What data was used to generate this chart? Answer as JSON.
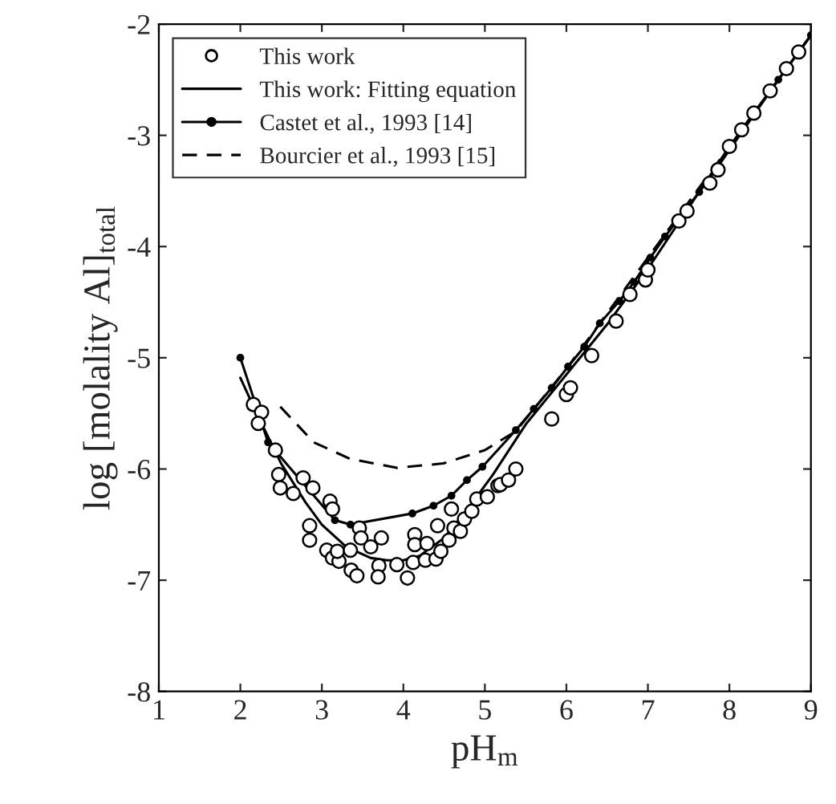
{
  "chart_data": {
    "type": "line",
    "xlabel": "pH$_{m}$",
    "ylabel": "log [molality Al]$_{total}$",
    "xlim": [
      1,
      9
    ],
    "ylim": [
      -8,
      -2
    ],
    "xticks": [
      1,
      2,
      3,
      4,
      5,
      6,
      7,
      8,
      9
    ],
    "yticks": [
      -8,
      -7,
      -6,
      -5,
      -4,
      -3,
      -2
    ],
    "grid": false,
    "legend": "top left",
    "series": [
      {
        "name": "This work",
        "type": "scatter",
        "marker": "circle",
        "color": "#000000",
        "x": [
          2.16,
          2.26,
          2.22,
          2.43,
          2.47,
          2.49,
          2.65,
          2.77,
          2.89,
          3.1,
          3.13,
          2.85,
          2.85,
          3.06,
          3.13,
          3.21,
          3.19,
          3.35,
          3.36,
          3.43,
          3.46,
          3.48,
          3.6,
          3.73,
          3.7,
          3.69,
          3.92,
          4.05,
          4.12,
          4.14,
          4.14,
          4.27,
          4.29,
          4.4,
          4.42,
          4.46,
          4.56,
          4.59,
          4.62,
          4.7,
          4.75,
          4.84,
          4.9,
          5.03,
          5.16,
          5.19,
          5.29,
          5.38,
          5.82,
          6.0,
          6.05,
          6.31,
          6.61,
          6.78,
          6.97,
          7.0,
          7.38,
          7.48,
          7.76,
          7.86,
          8.0,
          8.15,
          8.3,
          8.5,
          8.7,
          8.85
        ],
        "values": [
          -5.42,
          -5.49,
          -5.59,
          -5.83,
          -6.05,
          -6.17,
          -6.22,
          -6.08,
          -6.17,
          -6.29,
          -6.36,
          -6.51,
          -6.64,
          -6.73,
          -6.8,
          -6.83,
          -6.74,
          -6.73,
          -6.91,
          -6.96,
          -6.53,
          -6.62,
          -6.7,
          -6.62,
          -6.87,
          -6.97,
          -6.86,
          -6.98,
          -6.84,
          -6.59,
          -6.68,
          -6.82,
          -6.67,
          -6.81,
          -6.51,
          -6.74,
          -6.64,
          -6.36,
          -6.53,
          -6.56,
          -6.45,
          -6.38,
          -6.27,
          -6.25,
          -6.15,
          -6.14,
          -6.1,
          -6.0,
          -5.55,
          -5.33,
          -5.27,
          -4.98,
          -4.67,
          -4.43,
          -4.3,
          -4.21,
          -3.77,
          -3.68,
          -3.43,
          -3.31,
          -3.1,
          -2.95,
          -2.8,
          -2.6,
          -2.4,
          -2.25
        ]
      },
      {
        "name": "This work: Fitting equation",
        "marker": "none",
        "line_style": "solid",
        "color": "#000000",
        "x": [
          2.0,
          2.2,
          2.5,
          2.8,
          3.0,
          3.3,
          3.6,
          3.8,
          4.0,
          4.2,
          4.5,
          4.8,
          5.1,
          5.5,
          6.0,
          6.5,
          7.0,
          7.5,
          8.0,
          8.5,
          9.0
        ],
        "values": [
          -5.18,
          -5.5,
          -5.95,
          -6.3,
          -6.5,
          -6.7,
          -6.8,
          -6.82,
          -6.82,
          -6.78,
          -6.62,
          -6.35,
          -6.05,
          -5.6,
          -5.15,
          -4.7,
          -4.2,
          -3.65,
          -3.1,
          -2.6,
          -2.1
        ]
      },
      {
        "name": "Castet et al., 1993 [14]",
        "marker": "circle",
        "line_style": "solid",
        "color": "#000000",
        "x": [
          2.0,
          2.34,
          3.16,
          3.35,
          4.11,
          4.37,
          4.59,
          4.78,
          4.97,
          5.38,
          5.6,
          5.82,
          6.02,
          6.22,
          6.41,
          6.65,
          6.83,
          7.03,
          7.21,
          7.48,
          7.63,
          7.84,
          8.6,
          9.0
        ],
        "values": [
          -5.0,
          -5.76,
          -6.46,
          -6.5,
          -6.4,
          -6.33,
          -6.24,
          -6.1,
          -5.98,
          -5.65,
          -5.46,
          -5.27,
          -5.08,
          -4.9,
          -4.69,
          -4.49,
          -4.32,
          -4.1,
          -3.91,
          -3.65,
          -3.51,
          -3.3,
          -2.5,
          -2.1
        ]
      },
      {
        "name": "Bourcier et al., 1993 [15]",
        "marker": "none",
        "line_style": "dashed",
        "color": "#000000",
        "x": [
          2.49,
          2.9,
          3.35,
          3.92,
          4.49,
          5.0,
          5.38,
          6.0,
          7.0,
          8.0,
          9.0
        ],
        "values": [
          -5.44,
          -5.76,
          -5.91,
          -5.99,
          -5.95,
          -5.83,
          -5.66,
          -5.1,
          -4.1,
          -3.1,
          -2.1
        ]
      }
    ]
  }
}
